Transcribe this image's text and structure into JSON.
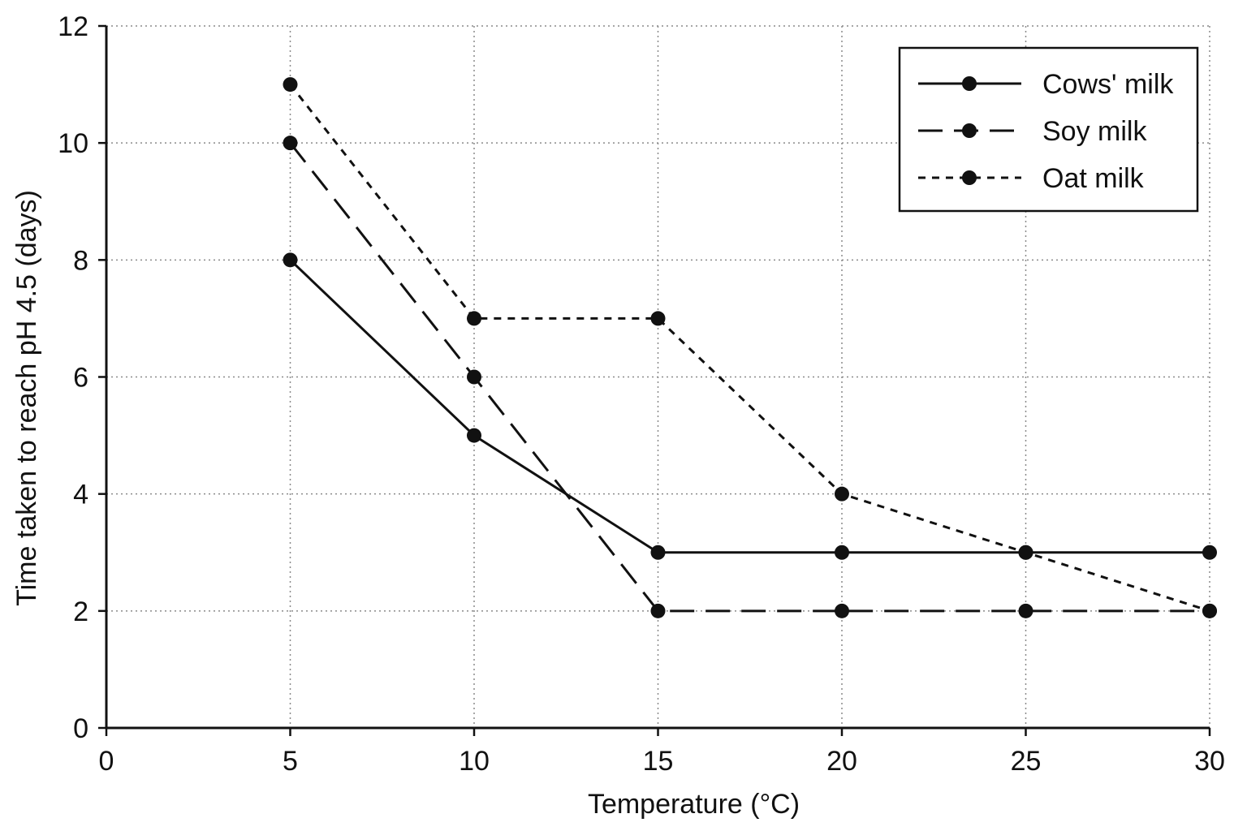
{
  "chart_data": {
    "type": "line",
    "title": "",
    "xlabel": "Temperature (°C)",
    "ylabel": "Time taken to reach pH 4.5 (days)",
    "xlim": [
      0,
      30
    ],
    "ylim": [
      0,
      12
    ],
    "x_ticks": [
      0,
      5,
      10,
      15,
      20,
      25,
      30
    ],
    "y_ticks": [
      0,
      2,
      4,
      6,
      8,
      10,
      12
    ],
    "grid": true,
    "legend_position": "top-right",
    "x": [
      5,
      10,
      15,
      20,
      25,
      30
    ],
    "series": [
      {
        "name": "Cows' milk",
        "style": "solid",
        "values": [
          8,
          5,
          3,
          3,
          3,
          3
        ]
      },
      {
        "name": "Soy milk",
        "style": "dashed",
        "values": [
          10,
          6,
          2,
          2,
          2,
          2
        ]
      },
      {
        "name": "Oat milk",
        "style": "dotted",
        "values": [
          11,
          7,
          7,
          4,
          3,
          2
        ]
      }
    ]
  }
}
